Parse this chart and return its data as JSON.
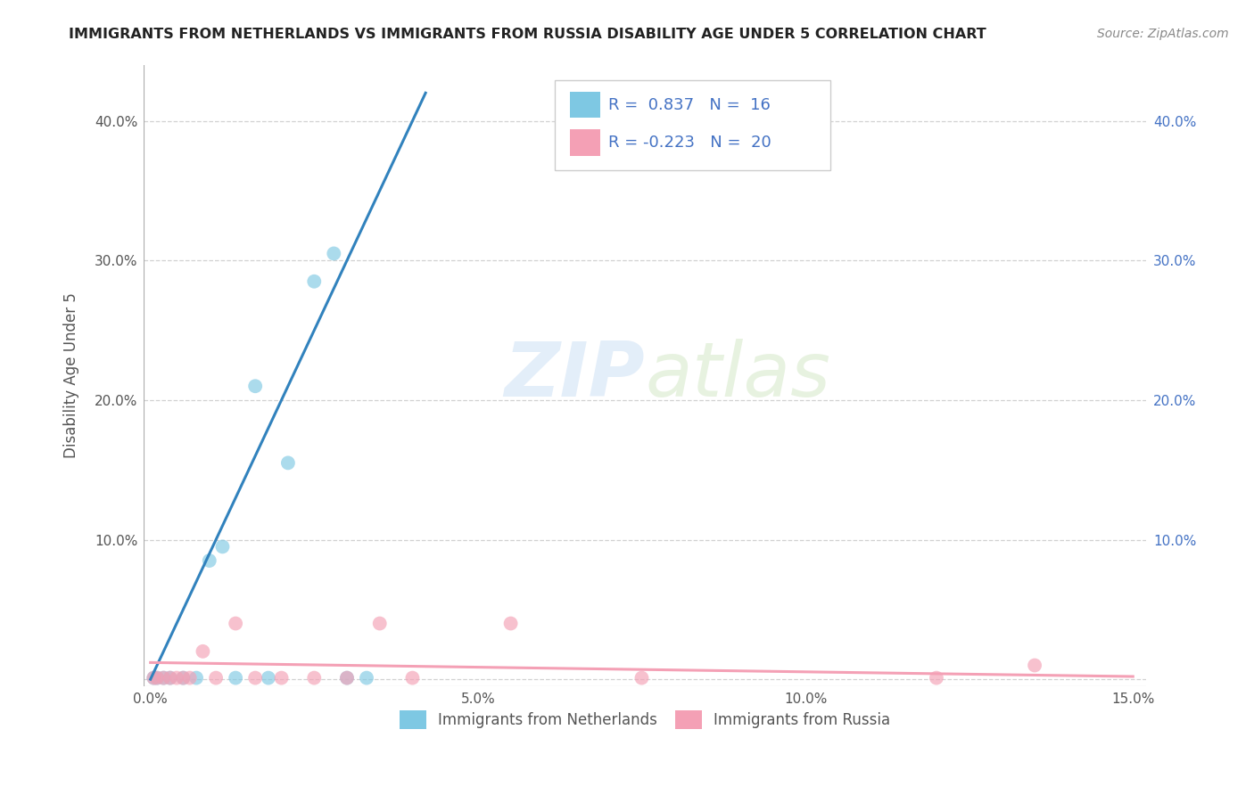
{
  "title": "IMMIGRANTS FROM NETHERLANDS VS IMMIGRANTS FROM RUSSIA DISABILITY AGE UNDER 5 CORRELATION CHART",
  "source": "Source: ZipAtlas.com",
  "ylabel": "Disability Age Under 5",
  "watermark_zip": "ZIP",
  "watermark_atlas": "atlas",
  "netherlands_scatter": {
    "x": [
      0.0005,
      0.001,
      0.002,
      0.003,
      0.005,
      0.007,
      0.009,
      0.011,
      0.013,
      0.016,
      0.018,
      0.021,
      0.025,
      0.028,
      0.03,
      0.033
    ],
    "y": [
      0.001,
      0.001,
      0.001,
      0.001,
      0.001,
      0.001,
      0.085,
      0.095,
      0.001,
      0.21,
      0.001,
      0.155,
      0.285,
      0.305,
      0.001,
      0.001
    ],
    "color": "#7ec8e3",
    "R": 0.837,
    "N": 16
  },
  "russia_scatter": {
    "x": [
      0.0005,
      0.001,
      0.002,
      0.003,
      0.004,
      0.005,
      0.006,
      0.008,
      0.01,
      0.013,
      0.016,
      0.02,
      0.025,
      0.03,
      0.035,
      0.04,
      0.055,
      0.075,
      0.12,
      0.135
    ],
    "y": [
      0.001,
      0.001,
      0.001,
      0.001,
      0.001,
      0.001,
      0.001,
      0.02,
      0.001,
      0.04,
      0.001,
      0.001,
      0.001,
      0.001,
      0.04,
      0.001,
      0.04,
      0.001,
      0.001,
      0.01
    ],
    "color": "#f4a0b5",
    "R": -0.223,
    "N": 20
  },
  "netherlands_trendline": {
    "x": [
      0.0,
      0.042
    ],
    "y": [
      0.0,
      0.42
    ],
    "color": "#3182bd"
  },
  "russia_trendline": {
    "x": [
      0.0,
      0.15
    ],
    "y": [
      0.012,
      0.002
    ],
    "color": "#f4a0b5"
  },
  "xlim": [
    -0.001,
    0.152
  ],
  "ylim": [
    -0.005,
    0.44
  ],
  "xticks": [
    0.0,
    0.05,
    0.1,
    0.15
  ],
  "xtick_labels": [
    "0.0%",
    "5.0%",
    "10.0%",
    "15.0%"
  ],
  "yticks_left": [
    0.0,
    0.1,
    0.2,
    0.3,
    0.4
  ],
  "ytick_labels_left": [
    "",
    "10.0%",
    "20.0%",
    "30.0%",
    "40.0%"
  ],
  "yticks_right": [
    0.1,
    0.2,
    0.3,
    0.4
  ],
  "ytick_labels_right": [
    "10.0%",
    "20.0%",
    "30.0%",
    "40.0%"
  ],
  "background_color": "#ffffff",
  "grid_color": "#cccccc"
}
